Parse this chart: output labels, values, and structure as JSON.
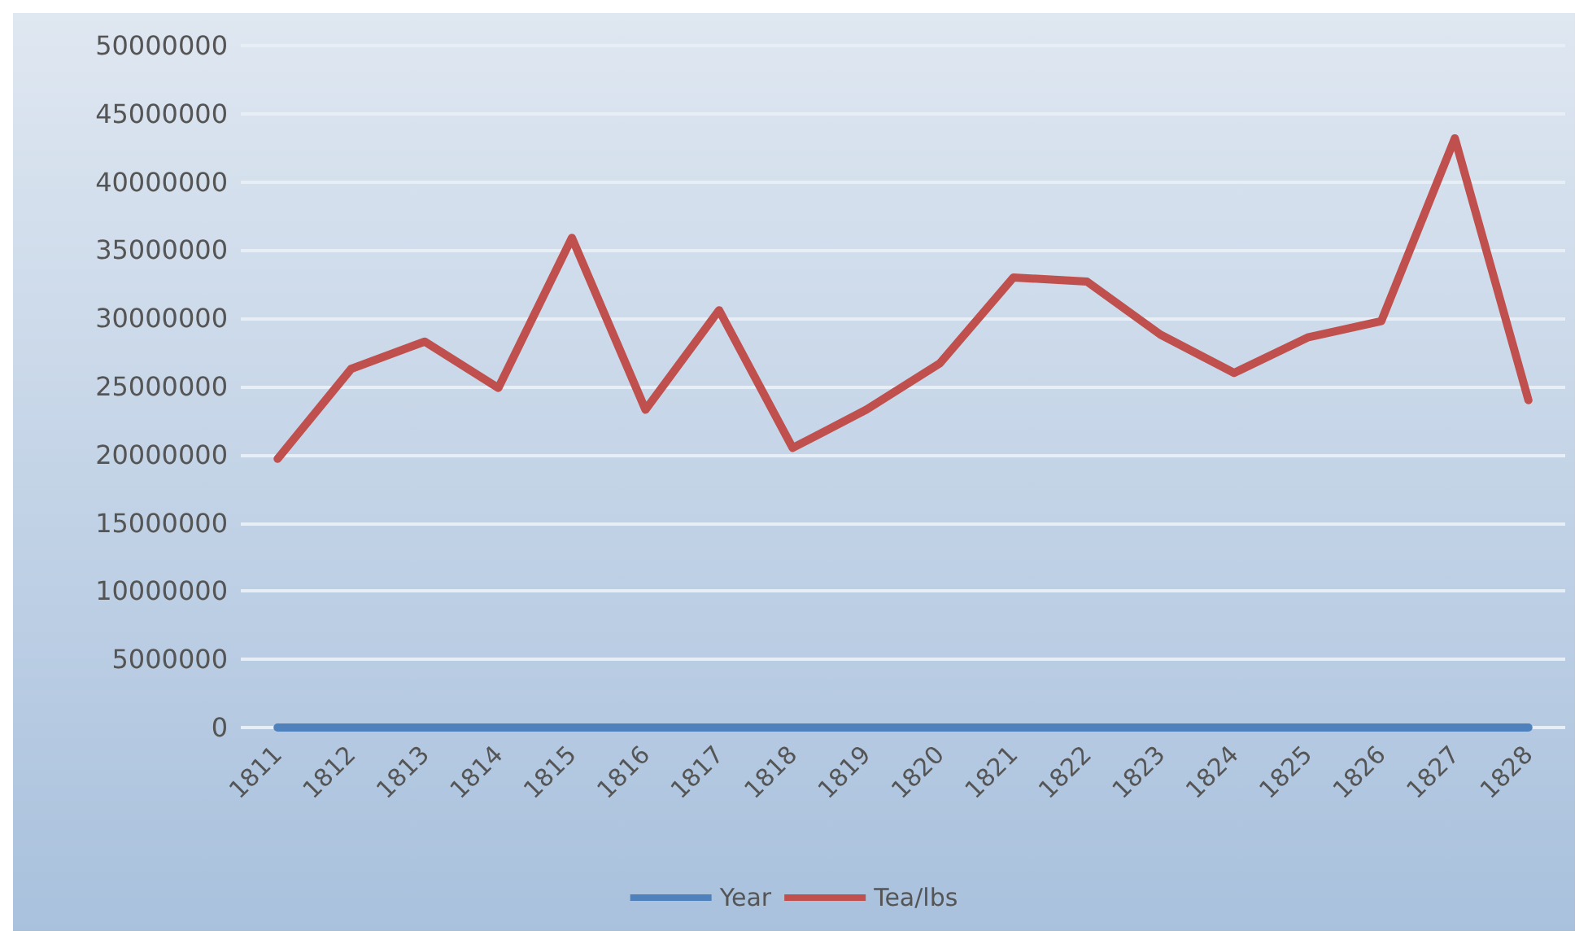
{
  "chart_data": {
    "type": "line",
    "categories": [
      "1811",
      "1812",
      "1813",
      "1814",
      "1815",
      "1816",
      "1817",
      "1818",
      "1819",
      "1820",
      "1821",
      "1822",
      "1823",
      "1824",
      "1825",
      "1826",
      "1827",
      "1828"
    ],
    "series": [
      {
        "name": "Year",
        "color": "#4f81bd",
        "values": [
          1811,
          1812,
          1813,
          1814,
          1815,
          1816,
          1817,
          1818,
          1819,
          1820,
          1821,
          1822,
          1823,
          1824,
          1825,
          1826,
          1827,
          1828
        ]
      },
      {
        "name": "Tea/lbs",
        "color": "#c0504d",
        "values": [
          19700000,
          26300000,
          28300000,
          24900000,
          35900000,
          23300000,
          30600000,
          20500000,
          23300000,
          26700000,
          33000000,
          32700000,
          28800000,
          26000000,
          28600000,
          29800000,
          43200000,
          24000000
        ]
      }
    ],
    "ylim": [
      0,
      50000000
    ],
    "yticks": [
      0,
      5000000,
      10000000,
      15000000,
      20000000,
      25000000,
      30000000,
      35000000,
      40000000,
      45000000,
      50000000
    ],
    "grid": "y",
    "legend": "bottom",
    "marker": "none",
    "line_style": "solid"
  }
}
